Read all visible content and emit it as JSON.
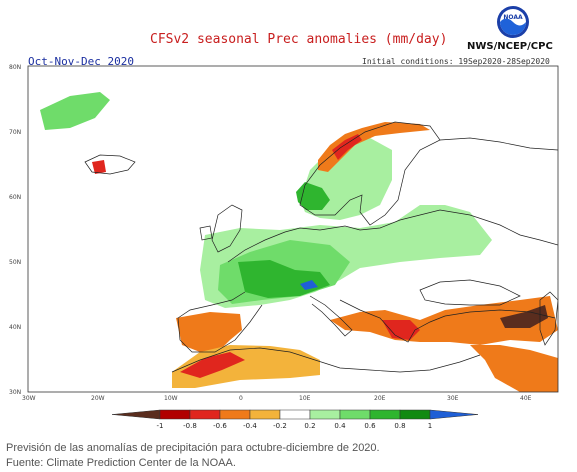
{
  "header": {
    "title": "CFSv2 seasonal Prec anomalies (mm/day)",
    "agency": "NWS/NCEP/CPC",
    "logo_text": "NOAA",
    "season": "Oct-Nov-Dec 2020",
    "initial_conditions": "Initial conditions: 19Sep2020-28Sep2020"
  },
  "map": {
    "lat_labels": [
      "80N",
      "70N",
      "60N",
      "50N",
      "40N",
      "30N"
    ],
    "lon_labels": [
      "30W",
      "20W",
      "10W",
      "0",
      "10E",
      "20E",
      "30E",
      "40E"
    ],
    "regions": [
      {
        "name": "iceland-dry-patch",
        "value": -0.7
      },
      {
        "name": "norway-coast-dry",
        "value": -0.5
      },
      {
        "name": "scandinavia-wet",
        "value": 0.5
      },
      {
        "name": "central-europe-wet",
        "value": 0.4
      },
      {
        "name": "france-wet-core",
        "value": 0.9
      },
      {
        "name": "alps-very-wet",
        "value": 1.0
      },
      {
        "name": "iberia-dry",
        "value": -0.7
      },
      {
        "name": "greece-dry",
        "value": -0.8
      },
      {
        "name": "turkey-east-very-dry",
        "value": -1.0
      }
    ]
  },
  "colorbar": {
    "labels": [
      "-1",
      "-0.8",
      "-0.6",
      "-0.4",
      "-0.2",
      "0.2",
      "0.4",
      "0.6",
      "0.8",
      "1"
    ],
    "colors": [
      "#5a2d1e",
      "#b10000",
      "#e0261e",
      "#ef7a1a",
      "#f3b33b",
      "#ffffff",
      "#a8efa0",
      "#6fdc6a",
      "#2fb52f",
      "#118a11",
      "#1f5fd6"
    ]
  },
  "caption": {
    "line1": "Previsión de las anomalías de precipitación para octubre-diciembre de 2020.",
    "line2": "Fuente: Climate Prediction Center de la NOAA."
  }
}
